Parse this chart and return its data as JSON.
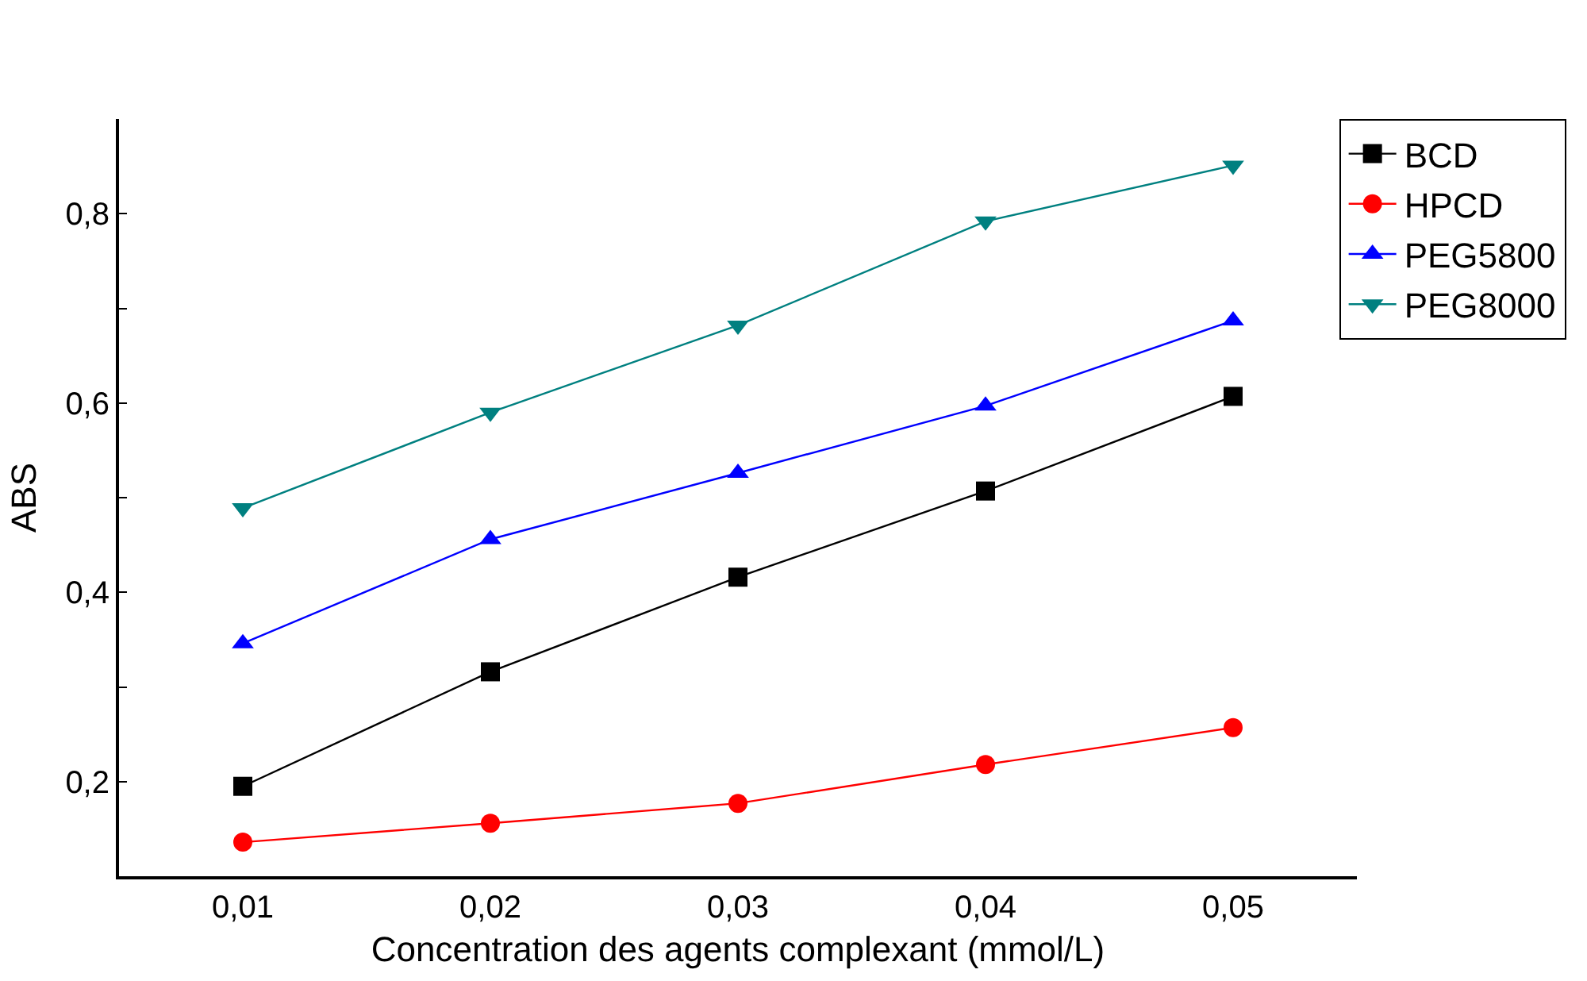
{
  "chart_data": {
    "type": "line",
    "xlabel": "Concentration des agents complexant (mmol/L)",
    "ylabel": "ABS",
    "x": [
      0.01,
      0.02,
      0.03,
      0.04,
      0.05
    ],
    "series": [
      {
        "name": "BCD",
        "color": "#000000",
        "marker": "square",
        "values": [
          0.195,
          0.316,
          0.416,
          0.507,
          0.607
        ]
      },
      {
        "name": "HPCD",
        "color": "#ff0000",
        "marker": "circle",
        "values": [
          0.136,
          0.156,
          0.177,
          0.218,
          0.257
        ]
      },
      {
        "name": "PEG5800",
        "color": "#0000ff",
        "marker": "triangle",
        "values": [
          0.346,
          0.456,
          0.526,
          0.597,
          0.687
        ]
      },
      {
        "name": "PEG8000",
        "color": "#008080",
        "marker": "triangle-down",
        "values": [
          0.489,
          0.59,
          0.682,
          0.792,
          0.851
        ]
      }
    ],
    "xlim": [
      0.005,
      0.055
    ],
    "xticks": [
      {
        "value": 0.01,
        "label": "0,01"
      },
      {
        "value": 0.02,
        "label": "0,02"
      },
      {
        "value": 0.03,
        "label": "0,03"
      },
      {
        "value": 0.04,
        "label": "0,04"
      },
      {
        "value": 0.05,
        "label": "0,05"
      }
    ],
    "ylim": [
      0.1,
      0.9
    ],
    "yticks": [
      {
        "value": 0.2,
        "label": "0,2"
      },
      {
        "value": 0.3,
        "label": null
      },
      {
        "value": 0.4,
        "label": "0,4"
      },
      {
        "value": 0.5,
        "label": null
      },
      {
        "value": 0.6,
        "label": "0,6"
      },
      {
        "value": 0.7,
        "label": null
      },
      {
        "value": 0.8,
        "label": "0,8"
      }
    ],
    "grid": false,
    "legend": "top right",
    "line_style": "solid"
  }
}
